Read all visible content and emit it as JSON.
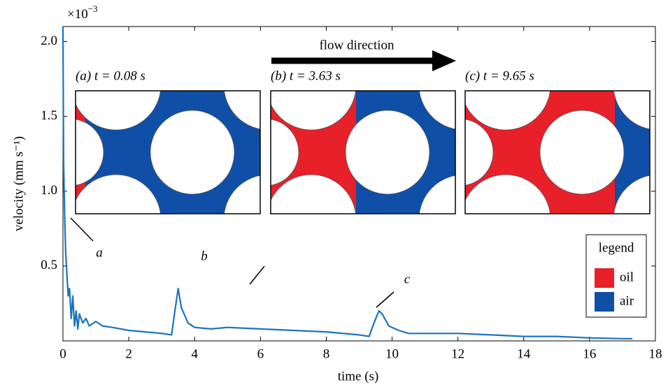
{
  "chart_data": {
    "type": "line",
    "xlabel": "time (s)",
    "ylabel": "velocity (mm s⁻¹)",
    "y_multiplier": {
      "base": "×10",
      "exponent": "−3"
    },
    "xlim": [
      0,
      18
    ],
    "ylim": [
      0,
      2.1
    ],
    "xticks": [
      0,
      2,
      4,
      6,
      8,
      10,
      12,
      14,
      16,
      18
    ],
    "yticks": [
      0.5,
      {
        "value": 1,
        "label": "1.0"
      },
      1.5,
      {
        "value": 2,
        "label": "2.0"
      }
    ],
    "color": "#1a74c0",
    "x": [
      0,
      0.02,
      0.05,
      0.08,
      0.12,
      0.16,
      0.2,
      0.25,
      0.3,
      0.35,
      0.4,
      0.45,
      0.5,
      0.6,
      0.7,
      0.8,
      1.0,
      1.2,
      1.5,
      2.0,
      2.5,
      3.0,
      3.3,
      3.4,
      3.5,
      3.6,
      3.8,
      4.0,
      4.5,
      5.0,
      6.0,
      7.0,
      8.0,
      9.0,
      9.3,
      9.45,
      9.6,
      9.7,
      9.9,
      10.2,
      10.5,
      11,
      12,
      13,
      14,
      15,
      16,
      17,
      17.3
    ],
    "values": [
      2.1,
      1.2,
      0.85,
      0.6,
      0.45,
      0.3,
      0.35,
      0.15,
      0.3,
      0.1,
      0.2,
      0.08,
      0.18,
      0.12,
      0.15,
      0.1,
      0.13,
      0.1,
      0.09,
      0.07,
      0.06,
      0.05,
      0.04,
      0.2,
      0.35,
      0.22,
      0.12,
      0.09,
      0.08,
      0.09,
      0.08,
      0.07,
      0.06,
      0.04,
      0.03,
      0.12,
      0.2,
      0.18,
      0.1,
      0.07,
      0.05,
      0.05,
      0.05,
      0.04,
      0.03,
      0.03,
      0.02,
      0.015,
      0.015
    ],
    "annotations": [
      "a",
      "b",
      "c"
    ],
    "insets": [
      {
        "title": "(a) t = 0.08 s"
      },
      {
        "title": "(b) t = 3.63 s"
      },
      {
        "title": "(c) t = 9.65 s"
      }
    ],
    "flow_label": "flow direction",
    "legend": {
      "title": "legend",
      "entries": [
        {
          "name": "oil",
          "color": "#e8202a"
        },
        {
          "name": "air",
          "color": "#0f4fa8"
        }
      ]
    }
  }
}
